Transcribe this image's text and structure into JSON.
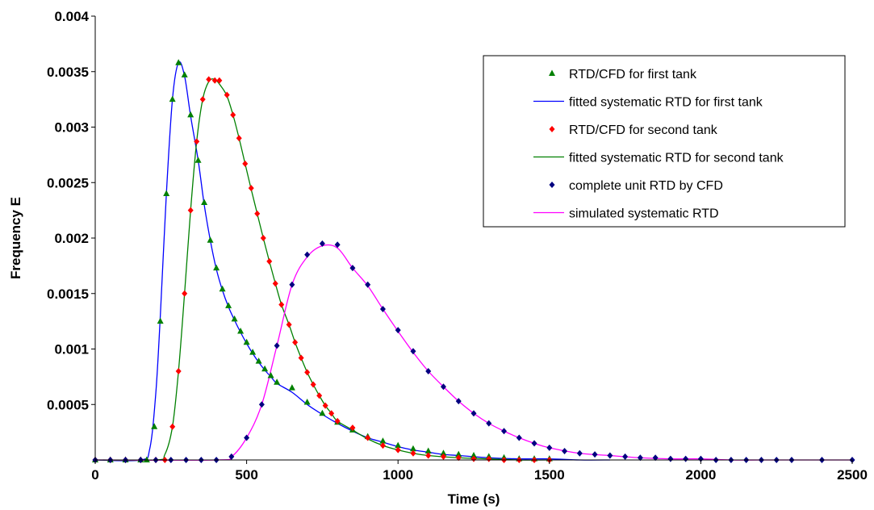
{
  "chart_data": {
    "type": "scatter",
    "title": "",
    "xlabel": "Time (s)",
    "ylabel": "Frequency E",
    "xlim": [
      0,
      2500
    ],
    "ylim": [
      0,
      0.004
    ],
    "x_ticks": [
      "0",
      "500",
      "1000",
      "1500",
      "2000",
      "2500"
    ],
    "y_ticks": [
      "0.0005",
      "0.001",
      "0.0015",
      "0.002",
      "0.0025",
      "0.003",
      "0.0035",
      "0.004"
    ],
    "grid": false,
    "legend_position": "top-right",
    "series": [
      {
        "name": "RTD/CFD for first tank",
        "kind": "markers",
        "marker": "triangle",
        "color": "#008000",
        "x": [
          0,
          50,
          100,
          150,
          170,
          195,
          215,
          235,
          255,
          275,
          295,
          315,
          340,
          360,
          380,
          400,
          420,
          440,
          460,
          480,
          500,
          520,
          540,
          560,
          580,
          600,
          650,
          700,
          750,
          800,
          850,
          900,
          950,
          1000,
          1050,
          1100,
          1150,
          1200,
          1250,
          1300,
          1350,
          1400,
          1450,
          1500
        ],
        "y": [
          0,
          0,
          0,
          0,
          0,
          0.0003,
          0.00125,
          0.0024,
          0.00325,
          0.00358,
          0.00347,
          0.00311,
          0.0027,
          0.00232,
          0.00198,
          0.00173,
          0.00154,
          0.00139,
          0.00127,
          0.00116,
          0.00106,
          0.00097,
          0.00089,
          0.00082,
          0.00076,
          0.0007,
          0.00065,
          0.00052,
          0.00042,
          0.00034,
          0.00027,
          0.00021,
          0.00017,
          0.00013,
          0.0001,
          8e-05,
          6e-05,
          5e-05,
          4e-05,
          3e-05,
          2e-05,
          1e-05,
          1e-05,
          1e-05
        ]
      },
      {
        "name": "fitted systematic RTD for first tank",
        "kind": "line",
        "color": "#0000ff",
        "x": [
          0,
          150,
          180,
          200,
          215,
          235,
          255,
          275,
          295,
          315,
          340,
          360,
          380,
          400,
          420,
          440,
          460,
          480,
          500,
          520,
          540,
          560,
          580,
          600,
          650,
          700,
          750,
          800,
          850,
          900,
          950,
          1000,
          1050,
          1100,
          1150,
          1200,
          1300,
          1400,
          1500,
          1600,
          1700
        ],
        "y": [
          0,
          0,
          0.0001,
          0.0006,
          0.0013,
          0.0024,
          0.00325,
          0.00358,
          0.00346,
          0.0031,
          0.0027,
          0.0023,
          0.00198,
          0.00172,
          0.00153,
          0.00138,
          0.00126,
          0.00115,
          0.00105,
          0.00096,
          0.00088,
          0.00081,
          0.00075,
          0.00069,
          0.00061,
          0.0005,
          0.00041,
          0.00033,
          0.00026,
          0.0002,
          0.00016,
          0.00012,
          9e-05,
          7e-05,
          5e-05,
          4e-05,
          2e-05,
          1e-05,
          1e-05,
          0,
          0
        ]
      },
      {
        "name": "RTD/CFD for second tank",
        "kind": "markers",
        "marker": "diamond",
        "color": "#ff0000",
        "x": [
          0,
          50,
          100,
          150,
          200,
          230,
          255,
          275,
          295,
          315,
          335,
          355,
          375,
          395,
          410,
          435,
          455,
          475,
          495,
          515,
          535,
          555,
          575,
          595,
          615,
          640,
          660,
          680,
          700,
          720,
          740,
          760,
          780,
          800,
          850,
          900,
          950,
          1000,
          1050,
          1100,
          1150,
          1200,
          1250,
          1300,
          1350,
          1400,
          1450,
          1500
        ],
        "y": [
          0,
          0,
          0,
          0,
          0,
          0,
          0.0003,
          0.0008,
          0.0015,
          0.00225,
          0.00287,
          0.00325,
          0.00343,
          0.00342,
          0.00342,
          0.00329,
          0.00311,
          0.0029,
          0.00267,
          0.00245,
          0.00222,
          0.002,
          0.00179,
          0.00159,
          0.0014,
          0.00122,
          0.00106,
          0.00092,
          0.00079,
          0.00068,
          0.00058,
          0.00049,
          0.00042,
          0.00035,
          0.00029,
          0.0002,
          0.00013,
          9e-05,
          6e-05,
          4e-05,
          3e-05,
          2e-05,
          1e-05,
          1e-05,
          0,
          0,
          0,
          0
        ]
      },
      {
        "name": "fitted systematic RTD for second tank",
        "kind": "line",
        "color": "#008000",
        "x": [
          0,
          200,
          230,
          255,
          275,
          295,
          315,
          335,
          355,
          375,
          395,
          415,
          435,
          455,
          475,
          495,
          515,
          535,
          555,
          575,
          595,
          615,
          640,
          660,
          680,
          700,
          720,
          740,
          760,
          780,
          800,
          850,
          900,
          950,
          1000,
          1050,
          1100,
          1200,
          1300,
          1400,
          1500
        ],
        "y": [
          0,
          0,
          5e-05,
          0.0003,
          0.0008,
          0.0015,
          0.00225,
          0.00287,
          0.00325,
          0.00341,
          0.00343,
          0.00337,
          0.00328,
          0.00311,
          0.0029,
          0.00267,
          0.00244,
          0.00222,
          0.002,
          0.00179,
          0.00159,
          0.0014,
          0.00122,
          0.00106,
          0.00092,
          0.00079,
          0.00068,
          0.00058,
          0.00049,
          0.00042,
          0.00035,
          0.00027,
          0.00019,
          0.00013,
          9e-05,
          6e-05,
          4e-05,
          2e-05,
          1e-05,
          0,
          0
        ]
      },
      {
        "name": "complete unit RTD by CFD",
        "kind": "markers",
        "marker": "diamond",
        "color": "#000080",
        "x": [
          0,
          50,
          100,
          150,
          200,
          250,
          300,
          350,
          400,
          450,
          500,
          550,
          600,
          650,
          700,
          750,
          800,
          850,
          900,
          950,
          1000,
          1050,
          1100,
          1150,
          1200,
          1250,
          1300,
          1350,
          1400,
          1450,
          1500,
          1550,
          1600,
          1650,
          1700,
          1750,
          1800,
          1850,
          1900,
          1950,
          2000,
          2050,
          2100,
          2150,
          2200,
          2250,
          2300,
          2400,
          2500
        ],
        "y": [
          0,
          0,
          0,
          0,
          0,
          0,
          0,
          0,
          0,
          3e-05,
          0.0002,
          0.0005,
          0.00103,
          0.00158,
          0.00185,
          0.00195,
          0.00194,
          0.00173,
          0.00158,
          0.00136,
          0.00117,
          0.00098,
          0.0008,
          0.00066,
          0.00053,
          0.00042,
          0.00033,
          0.00026,
          0.0002,
          0.00015,
          0.00011,
          8e-05,
          6e-05,
          5e-05,
          4e-05,
          3e-05,
          2e-05,
          2e-05,
          1e-05,
          1e-05,
          1e-05,
          0,
          0,
          0,
          0,
          0,
          0,
          0,
          0
        ]
      },
      {
        "name": "simulated systematic RTD",
        "kind": "line",
        "color": "#ff00ff",
        "x": [
          0,
          400,
          450,
          500,
          550,
          600,
          650,
          700,
          750,
          800,
          850,
          900,
          950,
          1000,
          1050,
          1100,
          1150,
          1200,
          1250,
          1300,
          1350,
          1400,
          1450,
          1500,
          1600,
          1700,
          1800,
          1900,
          2000,
          2100,
          2200,
          2300,
          2400,
          2500
        ],
        "y": [
          0,
          0,
          3e-05,
          0.0002,
          0.0005,
          0.00103,
          0.00158,
          0.00183,
          0.00193,
          0.00191,
          0.00173,
          0.00157,
          0.00136,
          0.00116,
          0.00097,
          0.0008,
          0.00066,
          0.00053,
          0.00042,
          0.00033,
          0.00026,
          0.0002,
          0.00015,
          0.00011,
          6e-05,
          4e-05,
          2e-05,
          1e-05,
          1e-05,
          0,
          0,
          0,
          0,
          0
        ]
      }
    ]
  }
}
